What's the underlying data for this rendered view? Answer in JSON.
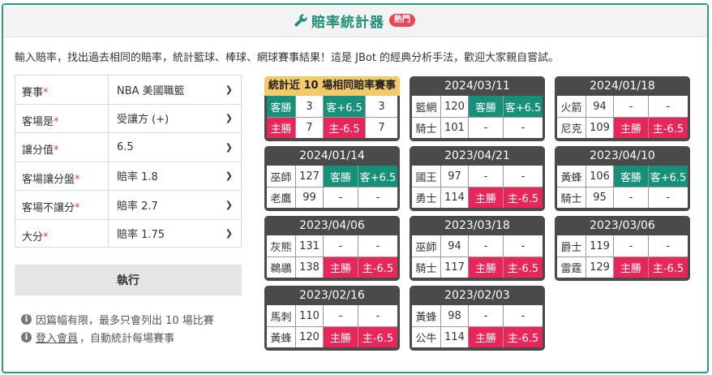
{
  "header": {
    "title": "賠率統計器",
    "badge": "熱門"
  },
  "intro": "輸入賠率，找出過去相同的賠率，統計籃球、棒球、網球賽事結果！這是 JBot 的經典分析手法，歡迎大家親自嘗試。",
  "form": {
    "rows": [
      {
        "label": "賽事",
        "value": "NBA 美國職籃"
      },
      {
        "label": "客場是",
        "value": "受讓方 (+)"
      },
      {
        "label": "讓分值",
        "value": "6.5"
      },
      {
        "label": "客場讓分盤",
        "value": "賠率 1.8"
      },
      {
        "label": "客場不讓分",
        "value": "賠率 2.7"
      },
      {
        "label": "大分",
        "value": "賠率 1.75"
      }
    ],
    "required_mark": "*",
    "submit_label": "執行"
  },
  "notes": {
    "limit": "因篇幅有限，最多只會列出 10 場比賽",
    "login_link": "登入會員",
    "login_rest": "，自動統計每場賽事"
  },
  "summary": {
    "title": "統計近 10 場相同賠率賽事",
    "rows": [
      {
        "a": "客勝",
        "b": "3",
        "c": "客+6.5",
        "d": "3"
      },
      {
        "a": "主勝",
        "b": "7",
        "c": "主-6.5",
        "d": "7"
      }
    ]
  },
  "games": [
    {
      "date": "2024/03/11",
      "away": "籃網",
      "away_score": "120",
      "home": "騎士",
      "home_score": "101",
      "away_c3": "客勝",
      "away_c4": "客+6.5",
      "home_c3": "-",
      "home_c4": "-"
    },
    {
      "date": "2024/01/18",
      "away": "火箭",
      "away_score": "94",
      "home": "尼克",
      "home_score": "109",
      "away_c3": "-",
      "away_c4": "-",
      "home_c3": "主勝",
      "home_c4": "主-6.5"
    },
    {
      "date": "2024/01/14",
      "away": "巫師",
      "away_score": "127",
      "home": "老鷹",
      "home_score": "99",
      "away_c3": "客勝",
      "away_c4": "客+6.5",
      "home_c3": "-",
      "home_c4": "-"
    },
    {
      "date": "2023/04/21",
      "away": "國王",
      "away_score": "97",
      "home": "勇士",
      "home_score": "114",
      "away_c3": "-",
      "away_c4": "-",
      "home_c3": "主勝",
      "home_c4": "主-6.5"
    },
    {
      "date": "2023/04/10",
      "away": "黃蜂",
      "away_score": "106",
      "home": "騎士",
      "home_score": "95",
      "away_c3": "客勝",
      "away_c4": "客+6.5",
      "home_c3": "-",
      "home_c4": "-"
    },
    {
      "date": "2023/04/06",
      "away": "灰熊",
      "away_score": "131",
      "home": "鵜鶘",
      "home_score": "138",
      "away_c3": "-",
      "away_c4": "-",
      "home_c3": "主勝",
      "home_c4": "主-6.5"
    },
    {
      "date": "2023/03/18",
      "away": "巫師",
      "away_score": "94",
      "home": "騎士",
      "home_score": "117",
      "away_c3": "-",
      "away_c4": "-",
      "home_c3": "主勝",
      "home_c4": "主-6.5"
    },
    {
      "date": "2023/03/06",
      "away": "爵士",
      "away_score": "119",
      "home": "雷霆",
      "home_score": "129",
      "away_c3": "-",
      "away_c4": "-",
      "home_c3": "主勝",
      "home_c4": "主-6.5"
    },
    {
      "date": "2023/02/16",
      "away": "馬刺",
      "away_score": "110",
      "home": "黃蜂",
      "home_score": "120",
      "away_c3": "-",
      "away_c4": "-",
      "home_c3": "主勝",
      "home_c4": "主-6.5"
    },
    {
      "date": "2023/02/03",
      "away": "黃蜂",
      "away_score": "98",
      "home": "公牛",
      "home_score": "114",
      "away_c3": "-",
      "away_c4": "-",
      "home_c3": "主勝",
      "home_c4": "主-6.5"
    }
  ],
  "colors": {
    "accent": "#1f8f78",
    "home_win": "#e8265a",
    "away_win": "#17907a",
    "summary_head": "#f2ca6a",
    "card_dark": "#4a4a4a"
  },
  "icons": {
    "title": "wrench-icon",
    "info": "info-icon",
    "chevron": "chevron-down-icon"
  }
}
